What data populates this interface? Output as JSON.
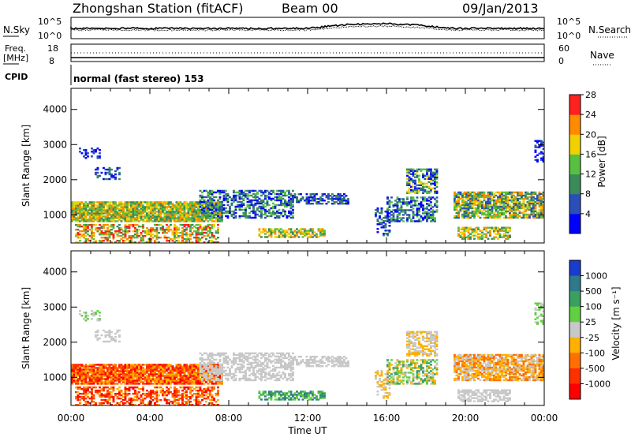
{
  "header": {
    "station": "Zhongshan Station (fitACF)",
    "beam": "Beam 00",
    "date": "09/Jan/2013",
    "mode": "normal (fast stereo) 153"
  },
  "strip_labels": {
    "nsky": "N.Sky",
    "nsky_tick_top": "10^5",
    "nsky_tick_bottom": "10^0",
    "nsearch": "N.Search",
    "nsearch_tick_top": "10^5",
    "nsearch_tick_bottom": "10^0",
    "freq": "Freq.",
    "freq_unit": "[MHz]",
    "freq_tick_top": "18",
    "freq_tick_bottom": "8",
    "nave": "Nave",
    "nave_tick_top": "60",
    "nave_tick_bottom": "0",
    "cpid": "CPID"
  },
  "chart_data": [
    {
      "type": "heatmap",
      "name": "power",
      "ylabel": "Slant Range [km]",
      "xlabel": "",
      "yticks": [
        "1000",
        "2000",
        "3000",
        "4000"
      ],
      "ylim": [
        200,
        4600
      ],
      "colorbar_label": "Power [dB]",
      "colorbar_ticks": [
        "4",
        "8",
        "12",
        "16",
        "20",
        "24",
        "28"
      ],
      "colorbar_colors": [
        "#0000ff",
        "#2a4fb8",
        "#3a8a5a",
        "#58c040",
        "#f0d000",
        "#ff8c00",
        "#ff2020"
      ]
    },
    {
      "type": "heatmap",
      "name": "velocity",
      "ylabel": "Slant Range [km]",
      "xlabel": "Time UT",
      "xticks": [
        "00:00",
        "04:00",
        "08:00",
        "12:00",
        "16:00",
        "20:00",
        "00:00"
      ],
      "yticks": [
        "1000",
        "2000",
        "3000",
        "4000"
      ],
      "ylim": [
        200,
        4600
      ],
      "colorbar_label": "Velocity [m s⁻¹]",
      "colorbar_ticks": [
        "1000",
        "500",
        "100",
        "25",
        "-25",
        "-100",
        "-500",
        "-1000"
      ],
      "colorbar_colors": [
        "#1a3ccc",
        "#2f7a8a",
        "#3aa060",
        "#60d040",
        "#c8c8c8",
        "#ffb000",
        "#ff7000",
        "#ff3000",
        "#ff0000"
      ]
    }
  ]
}
